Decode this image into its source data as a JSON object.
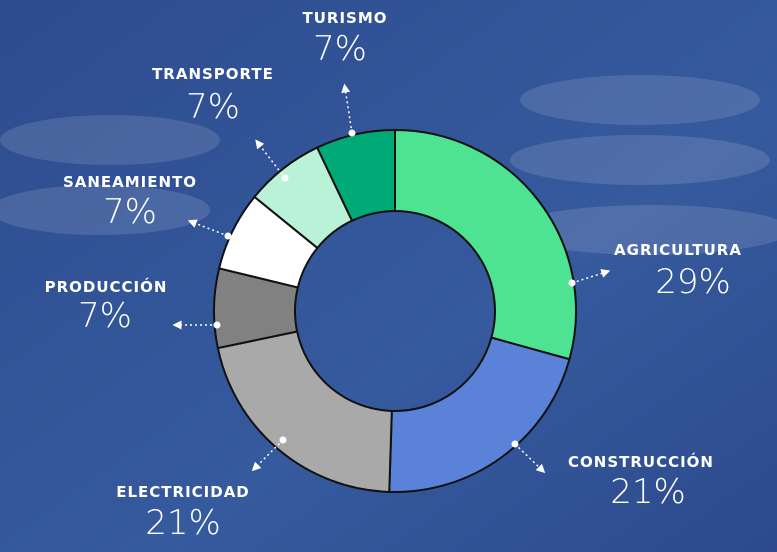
{
  "chart_data": {
    "type": "donut",
    "categories": [
      "AGRICULTURA",
      "CONSTRUCCIÓN",
      "ELECTRICIDAD",
      "PRODUCCIÓN",
      "SANEAMIENTO",
      "TRANSPORTE",
      "TURISMO"
    ],
    "values": [
      29,
      21,
      21,
      7,
      7,
      7,
      7
    ],
    "value_labels": [
      "29%",
      "21%",
      "21%",
      "7%",
      "7%",
      "7%",
      "7%"
    ],
    "colors": [
      "#4de393",
      "#5a82d9",
      "#a9a9a9",
      "#818181",
      "#ffffff",
      "#b9f2d6",
      "#00aa76"
    ]
  }
}
